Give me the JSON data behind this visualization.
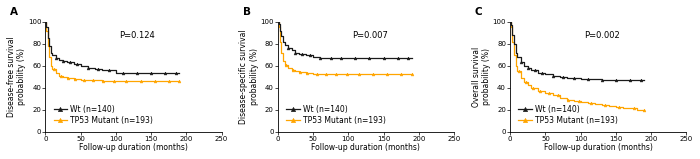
{
  "panels": [
    {
      "label": "A",
      "ylabel": "Disease-free survival\nprobability (%)",
      "pvalue": "P=0.124",
      "wt_curve": {
        "x": [
          0,
          1,
          3,
          5,
          8,
          10,
          15,
          20,
          25,
          30,
          40,
          50,
          60,
          70,
          80,
          100,
          120,
          140,
          160,
          180,
          190
        ],
        "y": [
          100,
          95,
          85,
          78,
          72,
          70,
          67,
          65,
          64,
          63,
          62,
          60,
          58,
          57,
          56,
          53,
          53,
          53,
          53,
          53,
          53
        ]
      },
      "mut_curve": {
        "x": [
          0,
          1,
          3,
          5,
          8,
          10,
          15,
          20,
          25,
          30,
          40,
          50,
          60,
          70,
          80,
          100,
          120,
          140,
          160,
          180,
          190
        ],
        "y": [
          100,
          92,
          78,
          68,
          60,
          57,
          53,
          51,
          50,
          49,
          48,
          47,
          47,
          47,
          46,
          46,
          46,
          46,
          46,
          46,
          46
        ]
      }
    },
    {
      "label": "B",
      "ylabel": "Disease-specific survival\nprobability (%)",
      "pvalue": "P=0.007",
      "wt_curve": {
        "x": [
          0,
          1,
          3,
          5,
          8,
          10,
          15,
          20,
          25,
          30,
          40,
          50,
          60,
          70,
          80,
          100,
          120,
          140,
          160,
          180,
          190
        ],
        "y": [
          100,
          98,
          92,
          87,
          82,
          79,
          76,
          74,
          72,
          71,
          70,
          68,
          67,
          67,
          67,
          67,
          67,
          67,
          67,
          67,
          67
        ]
      },
      "mut_curve": {
        "x": [
          0,
          1,
          3,
          5,
          8,
          10,
          15,
          20,
          25,
          30,
          40,
          50,
          60,
          70,
          80,
          100,
          120,
          140,
          160,
          180,
          190
        ],
        "y": [
          100,
          95,
          82,
          72,
          64,
          61,
          58,
          56,
          55,
          54,
          53,
          52,
          52,
          52,
          52,
          52,
          52,
          52,
          52,
          52,
          52
        ]
      }
    },
    {
      "label": "C",
      "ylabel": "Overall survival\nprobability (%)",
      "pvalue": "P=0.002",
      "wt_curve": {
        "x": [
          0,
          1,
          3,
          5,
          8,
          10,
          15,
          20,
          25,
          30,
          40,
          50,
          60,
          70,
          80,
          90,
          100,
          110,
          120,
          130,
          140,
          150,
          160,
          170,
          180,
          190
        ],
        "y": [
          100,
          97,
          88,
          80,
          72,
          68,
          63,
          60,
          58,
          56,
          53,
          52,
          51,
          50,
          49,
          49,
          48,
          48,
          48,
          47,
          47,
          47,
          47,
          47,
          47,
          47
        ]
      },
      "mut_curve": {
        "x": [
          0,
          1,
          3,
          5,
          8,
          10,
          15,
          20,
          25,
          30,
          40,
          50,
          60,
          70,
          80,
          90,
          100,
          110,
          120,
          130,
          140,
          150,
          160,
          170,
          180,
          190
        ],
        "y": [
          100,
          95,
          82,
          70,
          60,
          55,
          49,
          45,
          42,
          40,
          37,
          35,
          33,
          31,
          29,
          28,
          27,
          26,
          25,
          24,
          23,
          22,
          21,
          21,
          20,
          20
        ]
      }
    }
  ],
  "wt_color": "#1a1a1a",
  "mut_color": "#FFA500",
  "xlabel": "Follow-up duration (months)",
  "xlim": [
    0,
    250
  ],
  "ylim": [
    0,
    100
  ],
  "xticks": [
    0,
    50,
    100,
    150,
    200,
    250
  ],
  "yticks": [
    0,
    20,
    40,
    60,
    80,
    100
  ],
  "legend_wt": "Wt (n=140)",
  "legend_mut": "TP53 Mutant (n=193)",
  "fontsize_axis": 5.5,
  "fontsize_tick": 5.0,
  "fontsize_pval": 6.0,
  "fontsize_label": 7.5,
  "bg_color": "#ffffff"
}
